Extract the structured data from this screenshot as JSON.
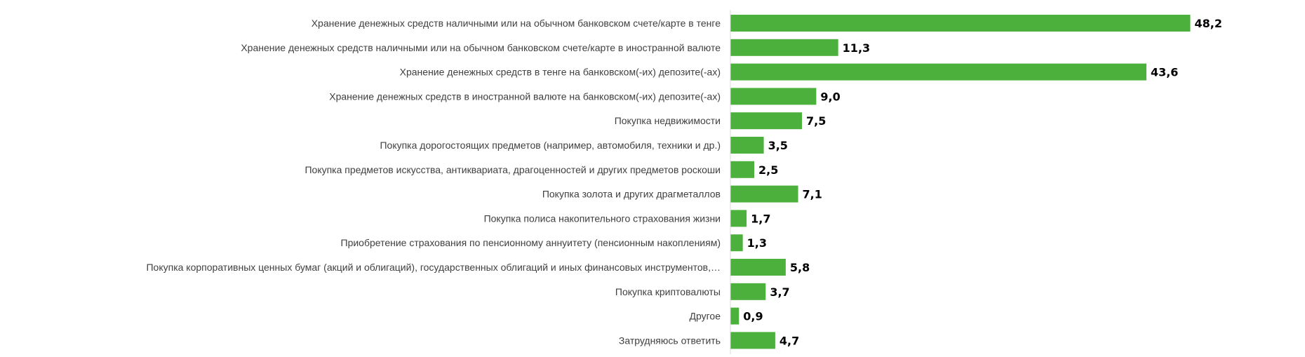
{
  "chart_data": {
    "type": "bar",
    "orientation": "horizontal",
    "categories": [
      "Хранение денежных средств наличными или на обычном банковском счете/карте в тенге",
      "Хранение денежных средств наличными или на обычном банковском счете/карте в иностранной валюте",
      "Хранение денежных средств в тенге на банковском(-их) депозите(-ах)",
      "Хранение денежных средств в иностранной валюте на банковском(-их) депозите(-ах)",
      "Покупка недвижимости",
      "Покупка дорогостоящих предметов (например, автомобиля, техники и др.)",
      "Покупка предметов искусства, антиквариата, драгоценностей и других предметов роскоши",
      "Покупка золота и других драгметаллов",
      "Покупка полиса накопительного страхования жизни",
      "Приобретение страхования по пенсионному аннуитету (пенсионным накоплениям)",
      "Покупка корпоративных ценных бумаг (акций и облигаций), государственных облигаций и иных финансовых инструментов,…",
      "Покупка криптовалюты",
      "Другое",
      "Затрудняюсь ответить"
    ],
    "values": [
      48.2,
      11.3,
      43.6,
      9.0,
      7.5,
      3.5,
      2.5,
      7.1,
      1.7,
      1.3,
      5.8,
      3.7,
      0.9,
      4.7
    ],
    "value_labels": [
      "48,2",
      "11,3",
      "43,6",
      "9,0",
      "7,5",
      "3,5",
      "2,5",
      "7,1",
      "1,7",
      "1,3",
      "5,8",
      "3,7",
      "0,9",
      "4,7"
    ],
    "xlim": [
      0,
      55
    ],
    "bar_color": "#4cb03d",
    "axis_color": "#d9d9d9",
    "grid": false,
    "legend": "none"
  }
}
